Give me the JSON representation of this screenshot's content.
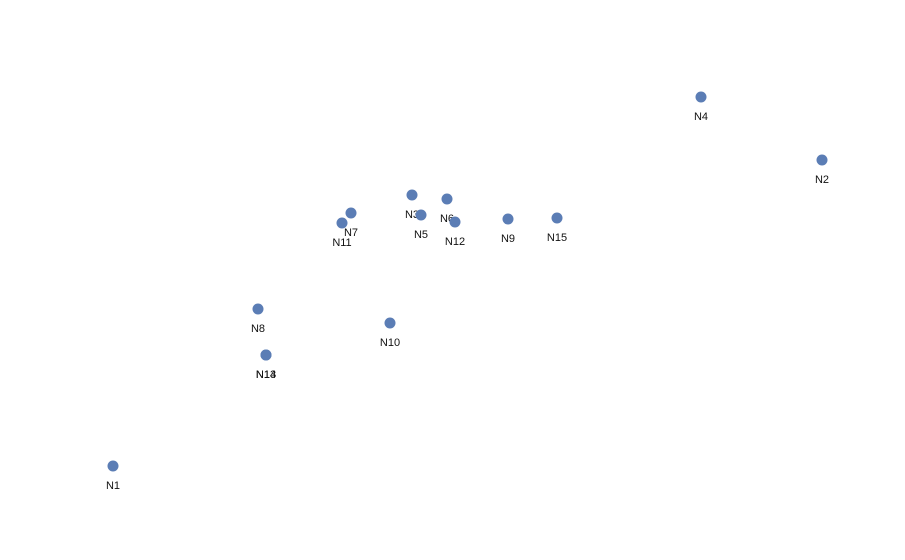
{
  "graph": {
    "node_color": "#5b7db5",
    "label_color": "#111111",
    "nodes": [
      {
        "id": "N1"
      },
      {
        "id": "N2"
      },
      {
        "id": "N3"
      },
      {
        "id": "N4"
      },
      {
        "id": "N5"
      },
      {
        "id": "N6"
      },
      {
        "id": "N7"
      },
      {
        "id": "N8"
      },
      {
        "id": "N9"
      },
      {
        "id": "N10"
      },
      {
        "id": "N11"
      },
      {
        "id": "N12"
      },
      {
        "id": "N13"
      },
      {
        "id": "N14"
      },
      {
        "id": "N15"
      }
    ],
    "edges": []
  }
}
